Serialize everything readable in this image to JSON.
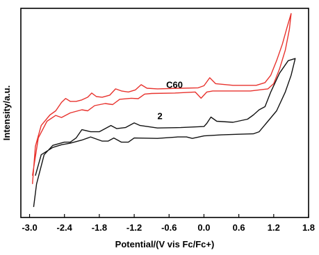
{
  "chart_data": {
    "type": "line",
    "title": "",
    "xlabel": "Potential/(V vis Fc/Fc+)",
    "ylabel": "Intensity/a.u.",
    "xlim": [
      -3.15,
      1.8
    ],
    "ylim": [
      0,
      1
    ],
    "x_ticks": [
      -3.0,
      -2.4,
      -1.8,
      -1.2,
      -0.6,
      0.0,
      0.6,
      1.2,
      1.8
    ],
    "x_tick_labels": [
      "-3.0",
      "-2.4",
      "-1.8",
      "-1.2",
      "-0.6",
      "0.0",
      "0.6",
      "1.2",
      "1.8"
    ],
    "y_ticks_shown": false,
    "grid": false,
    "legend": "none",
    "annotations": [
      {
        "text": "C60",
        "series": "C60"
      },
      {
        "text": "2",
        "series": "2"
      }
    ],
    "series": [
      {
        "name": "C60",
        "color": "#e8322d",
        "points": [
          [
            -2.95,
            0.16
          ],
          [
            -2.9,
            0.34
          ],
          [
            -2.8,
            0.44
          ],
          [
            -2.65,
            0.49
          ],
          [
            -2.55,
            0.51
          ],
          [
            -2.45,
            0.55
          ],
          [
            -2.38,
            0.569
          ],
          [
            -2.3,
            0.555
          ],
          [
            -2.2,
            0.555
          ],
          [
            -2.1,
            0.562
          ],
          [
            -2.0,
            0.575
          ],
          [
            -1.93,
            0.595
          ],
          [
            -1.85,
            0.578
          ],
          [
            -1.75,
            0.575
          ],
          [
            -1.62,
            0.585
          ],
          [
            -1.52,
            0.615
          ],
          [
            -1.42,
            0.605
          ],
          [
            -1.3,
            0.6
          ],
          [
            -1.18,
            0.61
          ],
          [
            -1.08,
            0.635
          ],
          [
            -0.98,
            0.618
          ],
          [
            -0.8,
            0.615
          ],
          [
            -0.4,
            0.618
          ],
          [
            -0.1,
            0.62
          ],
          [
            0.0,
            0.63
          ],
          [
            0.1,
            0.668
          ],
          [
            0.2,
            0.64
          ],
          [
            0.5,
            0.632
          ],
          [
            0.9,
            0.632
          ],
          [
            1.05,
            0.645
          ],
          [
            1.15,
            0.68
          ],
          [
            1.25,
            0.75
          ],
          [
            1.35,
            0.83
          ],
          [
            1.43,
            0.91
          ],
          [
            1.5,
            0.975
          ],
          [
            1.5,
            0.975
          ],
          [
            1.47,
            0.9
          ],
          [
            1.4,
            0.8
          ],
          [
            1.3,
            0.71
          ],
          [
            1.2,
            0.64
          ],
          [
            1.1,
            0.615
          ],
          [
            0.8,
            0.605
          ],
          [
            0.4,
            0.605
          ],
          [
            0.15,
            0.605
          ],
          [
            0.05,
            0.6
          ],
          [
            -0.05,
            0.57
          ],
          [
            -0.15,
            0.6
          ],
          [
            -0.5,
            0.595
          ],
          [
            -0.9,
            0.593
          ],
          [
            -1.02,
            0.59
          ],
          [
            -1.13,
            0.568
          ],
          [
            -1.25,
            0.57
          ],
          [
            -1.45,
            0.565
          ],
          [
            -1.57,
            0.54
          ],
          [
            -1.7,
            0.545
          ],
          [
            -1.88,
            0.535
          ],
          [
            -2.0,
            0.51
          ],
          [
            -2.1,
            0.515
          ],
          [
            -2.3,
            0.5
          ],
          [
            -2.45,
            0.478
          ],
          [
            -2.55,
            0.488
          ],
          [
            -2.7,
            0.46
          ],
          [
            -2.85,
            0.38
          ],
          [
            -2.95,
            0.2
          ]
        ]
      },
      {
        "name": "2",
        "color": "#111111",
        "points": [
          [
            -2.93,
            0.05
          ],
          [
            -2.88,
            0.16
          ],
          [
            -2.75,
            0.3
          ],
          [
            -2.6,
            0.345
          ],
          [
            -2.4,
            0.36
          ],
          [
            -2.3,
            0.36
          ],
          [
            -2.2,
            0.38
          ],
          [
            -2.1,
            0.42
          ],
          [
            -1.95,
            0.41
          ],
          [
            -1.8,
            0.41
          ],
          [
            -1.7,
            0.425
          ],
          [
            -1.6,
            0.44
          ],
          [
            -1.5,
            0.425
          ],
          [
            -1.35,
            0.43
          ],
          [
            -1.2,
            0.452
          ],
          [
            -1.1,
            0.44
          ],
          [
            -0.8,
            0.428
          ],
          [
            -0.4,
            0.43
          ],
          [
            0.0,
            0.435
          ],
          [
            0.05,
            0.45
          ],
          [
            0.12,
            0.48
          ],
          [
            0.22,
            0.46
          ],
          [
            0.5,
            0.455
          ],
          [
            0.75,
            0.47
          ],
          [
            0.85,
            0.49
          ],
          [
            0.95,
            0.515
          ],
          [
            1.05,
            0.53
          ],
          [
            1.15,
            0.6
          ],
          [
            1.3,
            0.69
          ],
          [
            1.45,
            0.75
          ],
          [
            1.57,
            0.76
          ],
          [
            1.57,
            0.76
          ],
          [
            1.5,
            0.68
          ],
          [
            1.4,
            0.6
          ],
          [
            1.25,
            0.51
          ],
          [
            1.1,
            0.46
          ],
          [
            0.95,
            0.41
          ],
          [
            0.85,
            0.4
          ],
          [
            0.6,
            0.398
          ],
          [
            0.3,
            0.395
          ],
          [
            0.0,
            0.39
          ],
          [
            -0.2,
            0.378
          ],
          [
            -0.3,
            0.385
          ],
          [
            -0.45,
            0.385
          ],
          [
            -0.8,
            0.378
          ],
          [
            -1.2,
            0.38
          ],
          [
            -1.3,
            0.36
          ],
          [
            -1.42,
            0.36
          ],
          [
            -1.55,
            0.38
          ],
          [
            -1.65,
            0.365
          ],
          [
            -1.75,
            0.365
          ],
          [
            -1.95,
            0.385
          ],
          [
            -2.1,
            0.37
          ],
          [
            -2.3,
            0.355
          ],
          [
            -2.45,
            0.348
          ],
          [
            -2.6,
            0.335
          ],
          [
            -2.8,
            0.3
          ],
          [
            -2.9,
            0.2
          ]
        ]
      }
    ]
  }
}
